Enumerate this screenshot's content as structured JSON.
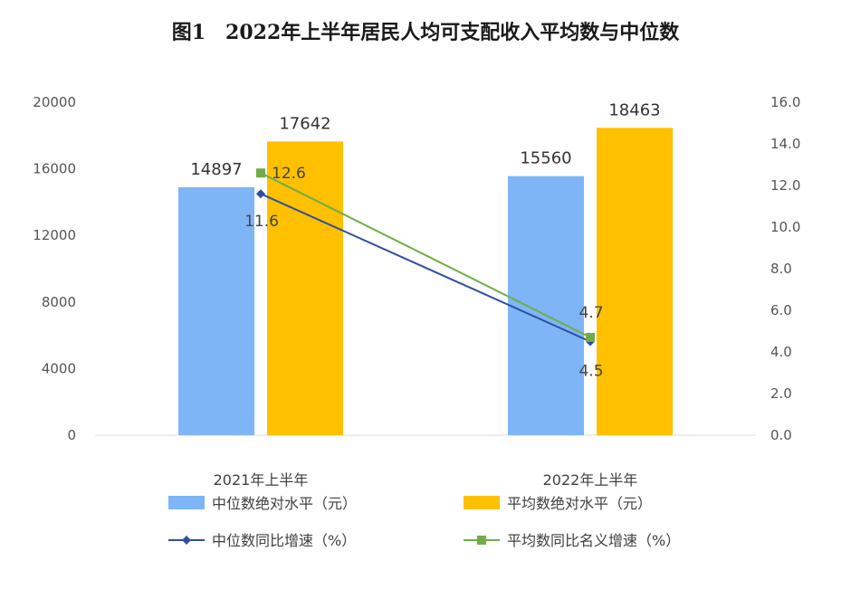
{
  "chart_data": {
    "type": "bar",
    "title": "图1　2022年上半年居民人均可支配收入平均数与中位数",
    "categories": [
      "2021年上半年",
      "2022年上半年"
    ],
    "series": [
      {
        "name": "中位数绝对水平（元）",
        "kind": "bar",
        "axis": "left",
        "color": "#7EB5F6",
        "values": [
          14897,
          15560
        ]
      },
      {
        "name": "平均数绝对水平（元）",
        "kind": "bar",
        "axis": "left",
        "color": "#FFC000",
        "values": [
          17642,
          18463
        ]
      },
      {
        "name": "中位数同比增速（%）",
        "kind": "line",
        "axis": "right",
        "marker": "diamond",
        "color": "#2F4F9E",
        "values": [
          11.6,
          4.5
        ]
      },
      {
        "name": "平均数同比名义增速（%）",
        "kind": "line",
        "axis": "right",
        "marker": "square",
        "color": "#70AD47",
        "values": [
          12.6,
          4.7
        ]
      }
    ],
    "y_left": {
      "ylim": [
        0,
        20000
      ],
      "ticks": [
        "0",
        "4000",
        "8000",
        "12000",
        "16000",
        "20000"
      ]
    },
    "y_right": {
      "ylim": [
        0,
        16
      ],
      "ticks": [
        "0.0",
        "2.0",
        "4.0",
        "6.0",
        "8.0",
        "10.0",
        "12.0",
        "14.0",
        "16.0"
      ]
    },
    "grid": false,
    "legend_position": "bottom"
  }
}
